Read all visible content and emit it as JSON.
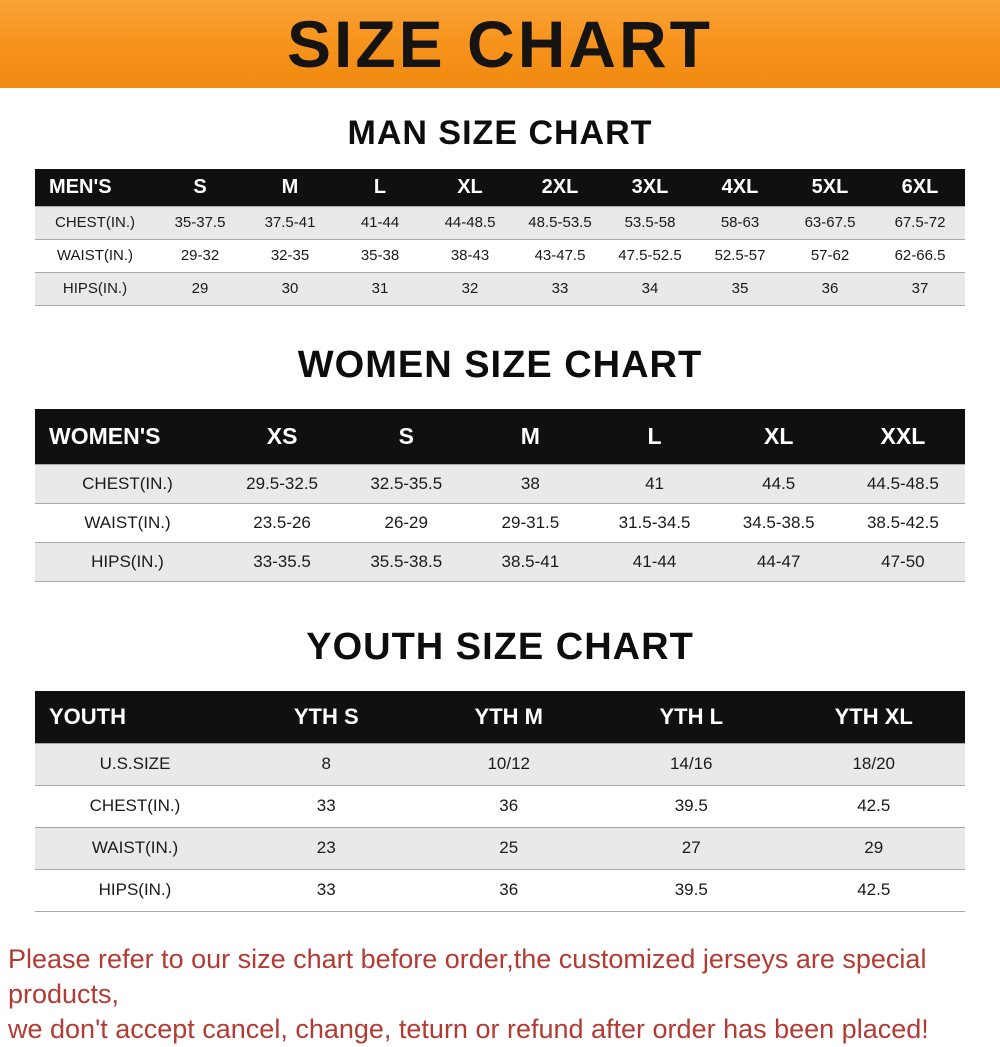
{
  "banner": {
    "title": "SIZE CHART"
  },
  "colors": {
    "accent": "#f7941d",
    "header_bg": "#101010",
    "row_alt": "#e9e9e9",
    "footer_red": "#b23b33"
  },
  "sections": [
    {
      "heading": "MAN SIZE CHART",
      "table": {
        "corner_label": "MEN'S",
        "columns": [
          "S",
          "M",
          "L",
          "XL",
          "2XL",
          "3XL",
          "4XL",
          "5XL",
          "6XL"
        ],
        "rows": [
          {
            "label": "CHEST(IN.)",
            "values": [
              "35-37.5",
              "37.5-41",
              "41-44",
              "44-48.5",
              "48.5-53.5",
              "53.5-58",
              "58-63",
              "63-67.5",
              "67.5-72"
            ]
          },
          {
            "label": "WAIST(IN.)",
            "values": [
              "29-32",
              "32-35",
              "35-38",
              "38-43",
              "43-47.5",
              "47.5-52.5",
              "52.5-57",
              "57-62",
              "62-66.5"
            ]
          },
          {
            "label": "HIPS(IN.)",
            "values": [
              "29",
              "30",
              "31",
              "32",
              "33",
              "34",
              "35",
              "36",
              "37"
            ]
          }
        ]
      }
    },
    {
      "heading": "WOMEN SIZE CHART",
      "table": {
        "corner_label": "WOMEN'S",
        "columns": [
          "XS",
          "S",
          "M",
          "L",
          "XL",
          "XXL"
        ],
        "rows": [
          {
            "label": "CHEST(IN.)",
            "values": [
              "29.5-32.5",
              "32.5-35.5",
              "38",
              "41",
              "44.5",
              "44.5-48.5"
            ]
          },
          {
            "label": "WAIST(IN.)",
            "values": [
              "23.5-26",
              "26-29",
              "29-31.5",
              "31.5-34.5",
              "34.5-38.5",
              "38.5-42.5"
            ]
          },
          {
            "label": "HIPS(IN.)",
            "values": [
              "33-35.5",
              "35.5-38.5",
              "38.5-41",
              "41-44",
              "44-47",
              "47-50"
            ]
          }
        ]
      }
    },
    {
      "heading": "YOUTH SIZE CHART",
      "table": {
        "corner_label": "YOUTH",
        "columns": [
          "YTH S",
          "YTH M",
          "YTH L",
          "YTH XL"
        ],
        "rows": [
          {
            "label": "U.S.SIZE",
            "values": [
              "8",
              "10/12",
              "14/16",
              "18/20"
            ]
          },
          {
            "label": "CHEST(IN.)",
            "values": [
              "33",
              "36",
              "39.5",
              "42.5"
            ]
          },
          {
            "label": "WAIST(IN.)",
            "values": [
              "23",
              "25",
              "27",
              "29"
            ]
          },
          {
            "label": "HIPS(IN.)",
            "values": [
              "33",
              "36",
              "39.5",
              "42.5"
            ]
          }
        ]
      }
    }
  ],
  "footer": {
    "lines": [
      "Please refer to our size chart before order,the customized jerseys are special products,",
      "we don't accept cancel, change, teturn or refund after order has been placed!"
    ]
  }
}
